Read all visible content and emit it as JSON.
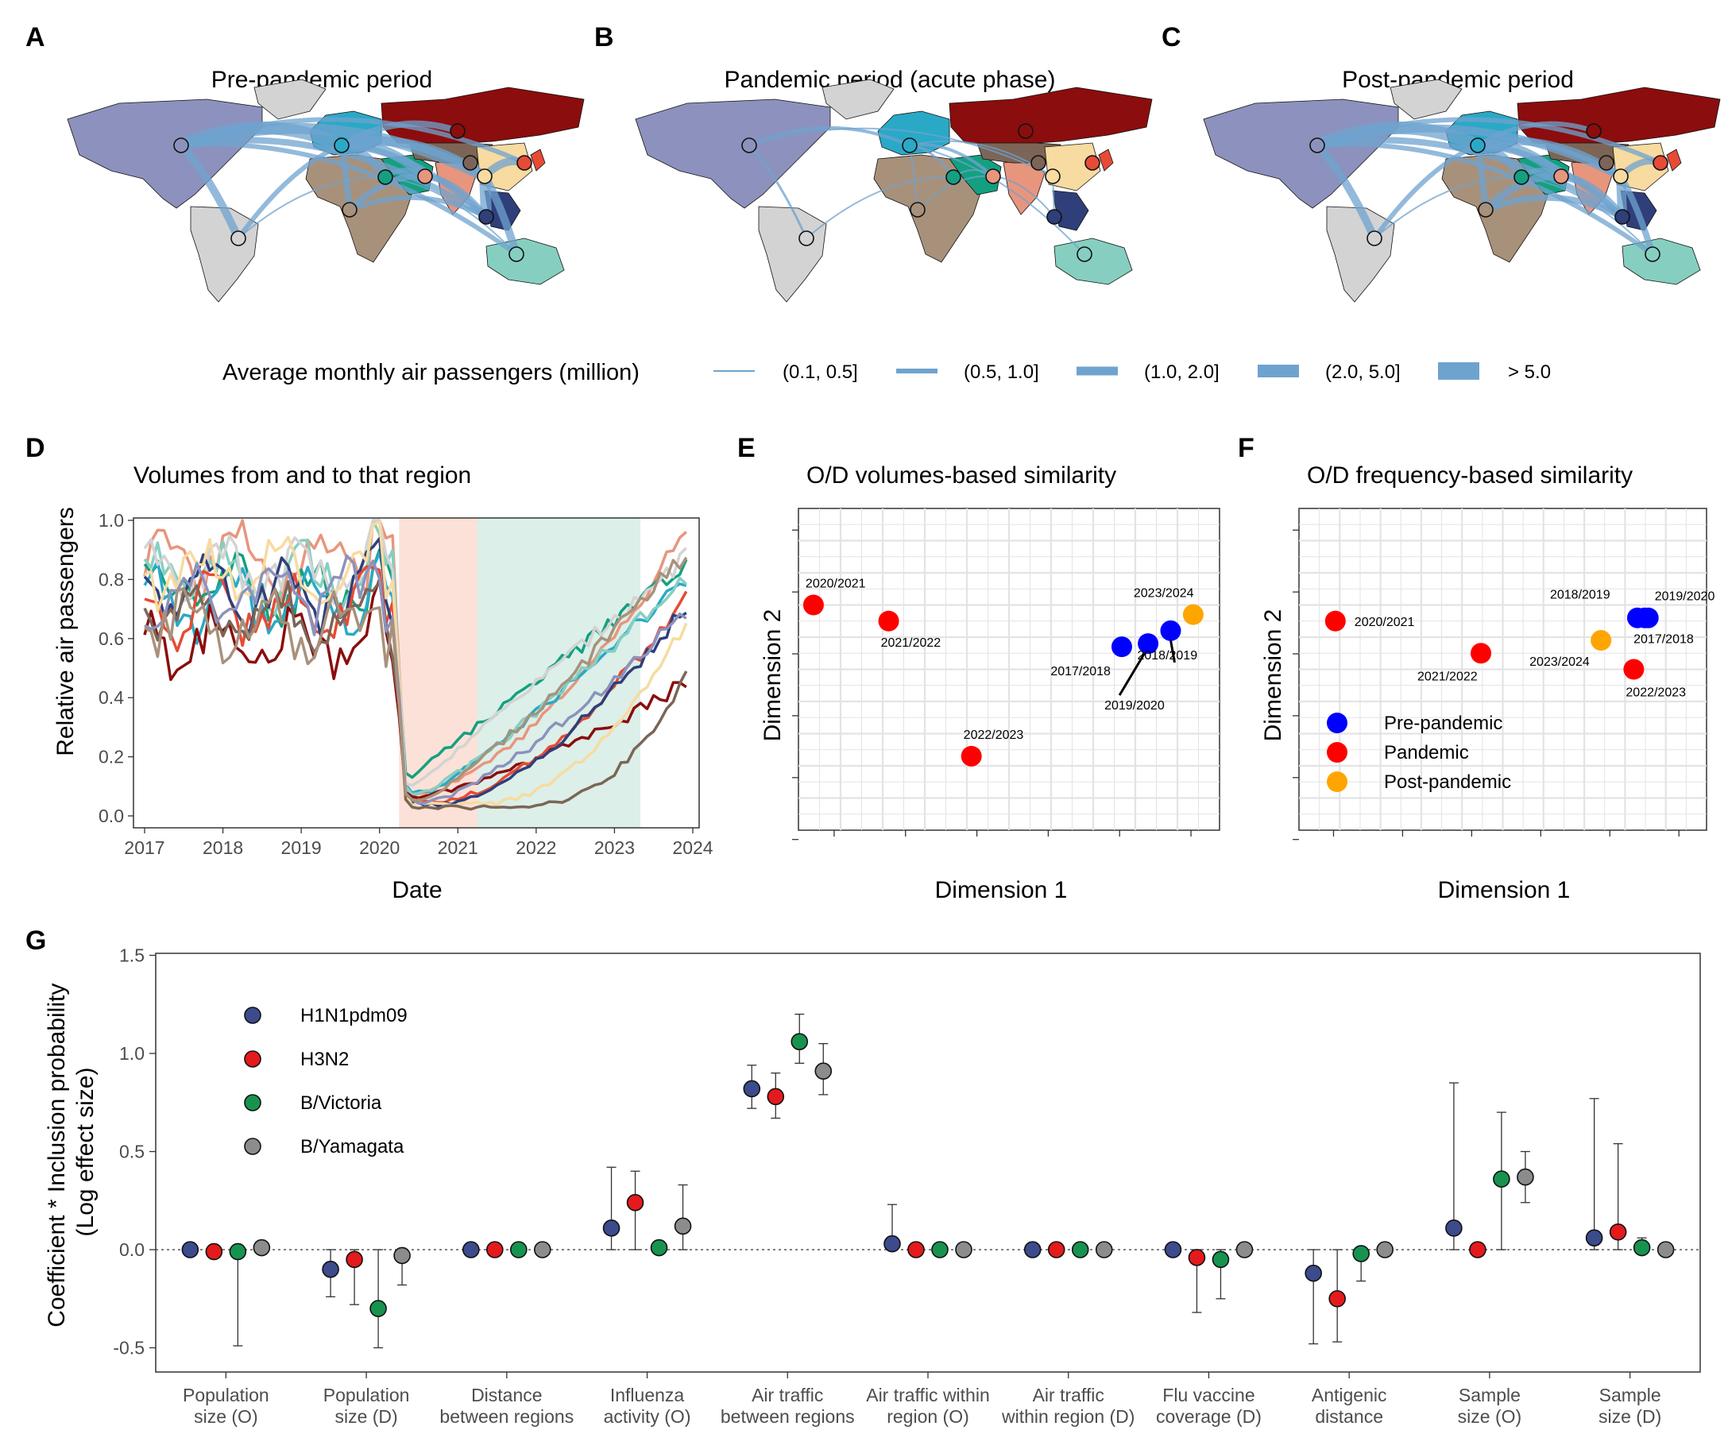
{
  "panel_labels": [
    "A",
    "B",
    "C",
    "D",
    "E",
    "F",
    "G"
  ],
  "maps": [
    {
      "label": "A",
      "title": "Pre-pandemic period"
    },
    {
      "label": "B",
      "title": "Pandemic period (acute phase)"
    },
    {
      "label": "C",
      "title": "Post-pandemic period"
    }
  ],
  "map_legend": {
    "title": "Average monthly air passengers (million)",
    "items": [
      "(0.1, 0.5]",
      "(0.5, 1.0]",
      "(1.0, 2.0]",
      "(2.0, 5.0]",
      "> 5.0"
    ],
    "color": "#6fa3cf"
  },
  "region_colors": [
    "#8c92bd",
    "#d3d3d3",
    "#2aa9c7",
    "#a8917b",
    "#14a080",
    "#e8957d",
    "#8b0d0d",
    "#7c6556",
    "#f7dba0",
    "#e64b35",
    "#2f3f7a",
    "#86cfc0"
  ],
  "chart_data": [
    {
      "panel": "D",
      "type": "line",
      "title": "Volumes from and to that region",
      "xlabel": "Date",
      "ylabel": "Relative air passengers",
      "xlim": [
        2017,
        2024
      ],
      "ylim": [
        0,
        1
      ],
      "xticks": [
        "2017",
        "2018",
        "2019",
        "2020",
        "2021",
        "2022",
        "2023",
        "2024"
      ],
      "yticks": [
        "0.0",
        "0.2",
        "0.4",
        "0.6",
        "0.8",
        "1.0"
      ],
      "shaded_periods": [
        {
          "from": 2020.25,
          "to": 2021.25,
          "color": "#fbe1d7"
        },
        {
          "from": 2021.25,
          "to": 2023.33,
          "color": "#dcefe9"
        }
      ],
      "series_curves": [
        {
          "color": "#e8957d",
          "pre": 0.88,
          "trough": 0.07,
          "end": 0.98,
          "k": 1.7,
          "d": 0.0
        },
        {
          "color": "#14a080",
          "pre": 0.76,
          "trough": 0.12,
          "end": 0.85,
          "k": 1.0,
          "d": 0.0
        },
        {
          "color": "#2aa9c7",
          "pre": 0.72,
          "trough": 0.08,
          "end": 0.8,
          "k": 1.1,
          "d": 0.3
        },
        {
          "color": "#86cfc0",
          "pre": 0.8,
          "trough": 0.07,
          "end": 0.82,
          "k": 1.2,
          "d": 0.15
        },
        {
          "color": "#d3d3d3",
          "pre": 0.83,
          "trough": 0.08,
          "end": 0.88,
          "k": 1.0,
          "d": 0.0
        },
        {
          "color": "#8b0d0d",
          "pre": 0.58,
          "trough": 0.06,
          "end": 0.45,
          "k": 1.4,
          "d": 0.05
        },
        {
          "color": "#e64b35",
          "pre": 0.7,
          "trough": 0.05,
          "end": 0.74,
          "k": 1.6,
          "d": 0.45
        },
        {
          "color": "#2f3f7a",
          "pre": 0.75,
          "trough": 0.04,
          "end": 0.72,
          "k": 1.5,
          "d": 0.55
        },
        {
          "color": "#f7dba0",
          "pre": 0.82,
          "trough": 0.04,
          "end": 0.66,
          "k": 2.0,
          "d": 0.95
        },
        {
          "color": "#7c6556",
          "pre": 0.68,
          "trough": 0.03,
          "end": 0.5,
          "k": 2.6,
          "d": 1.3
        },
        {
          "color": "#8c92bd",
          "pre": 0.74,
          "trough": 0.05,
          "end": 0.7,
          "k": 1.3,
          "d": 0.35
        },
        {
          "color": "#a8917b",
          "pre": 0.65,
          "trough": 0.05,
          "end": 0.9,
          "k": 1.2,
          "d": 0.2
        }
      ]
    },
    {
      "panel": "E",
      "type": "scatter",
      "title": "O/D volumes-based similarity",
      "xlabel": "Dimension 1",
      "ylabel": "Dimension 2",
      "points": [
        {
          "label": "2020/2021",
          "x": 0.04,
          "y": 0.7,
          "group": "Pandemic"
        },
        {
          "label": "2021/2022",
          "x": 0.24,
          "y": 0.65,
          "group": "Pandemic"
        },
        {
          "label": "2022/2023",
          "x": 0.46,
          "y": 0.23,
          "group": "Pandemic"
        },
        {
          "label": "2017/2018",
          "x": 0.86,
          "y": 0.57,
          "group": "Pre-pandemic"
        },
        {
          "label": "2019/2020",
          "x": 0.93,
          "y": 0.58,
          "group": "Pre-pandemic"
        },
        {
          "label": "2018/2019",
          "x": 0.99,
          "y": 0.62,
          "group": "Pre-pandemic"
        },
        {
          "label": "2023/2024",
          "x": 1.05,
          "y": 0.67,
          "group": "Post-pandemic"
        }
      ]
    },
    {
      "panel": "F",
      "type": "scatter",
      "title": "O/D frequency-based similarity",
      "xlabel": "Dimension 1",
      "ylabel": "Dimension 2",
      "points": [
        {
          "label": "2020/2021",
          "x": 0.1,
          "y": 0.65,
          "group": "Pandemic"
        },
        {
          "label": "2021/2022",
          "x": 0.5,
          "y": 0.55,
          "group": "Pandemic"
        },
        {
          "label": "2022/2023",
          "x": 0.92,
          "y": 0.5,
          "group": "Pandemic"
        },
        {
          "label": "2018/2019",
          "x": 0.93,
          "y": 0.66,
          "group": "Pre-pandemic"
        },
        {
          "label": "2019/2020",
          "x": 0.96,
          "y": 0.66,
          "group": "Pre-pandemic"
        },
        {
          "label": "2017/2018",
          "x": 0.95,
          "y": 0.66,
          "group": "Pre-pandemic"
        },
        {
          "label": "2023/2024",
          "x": 0.83,
          "y": 0.59,
          "group": "Post-pandemic"
        }
      ],
      "legend": [
        {
          "name": "Pre-pandemic",
          "color": "#0000ff"
        },
        {
          "name": "Pandemic",
          "color": "#ff0000"
        },
        {
          "name": "Post-pandemic",
          "color": "#ffa500"
        }
      ]
    },
    {
      "panel": "G",
      "type": "scatter",
      "ylabel": "Coefficient * Inclusion probability (Log effect size)",
      "ylim": [
        -0.55,
        1.5
      ],
      "yticks": [
        "-0.5",
        "0.0",
        "0.5",
        "1.0",
        "1.5"
      ],
      "categories": [
        "Population size (O)",
        "Population size (D)",
        "Distance between regions",
        "Influenza activity (O)",
        "Air traffic between regions",
        "Air traffic within region (O)",
        "Air traffic within region (D)",
        "Flu vaccine coverage (D)",
        "Antigenic distance",
        "Sample size (O)",
        "Sample size (D)"
      ],
      "series": [
        {
          "name": "H1N1pdm09",
          "color": "#3c4b8c",
          "values": [
            0.0,
            -0.1,
            0.0,
            0.11,
            0.82,
            0.03,
            0.0,
            0.0,
            -0.12,
            0.11,
            0.06
          ],
          "err": [
            [
              0,
              0
            ],
            [
              -0.24,
              0
            ],
            [
              0,
              0
            ],
            [
              0,
              0.42
            ],
            [
              0.72,
              0.94
            ],
            [
              0,
              0.23
            ],
            [
              0,
              0
            ],
            [
              0,
              0
            ],
            [
              -0.48,
              0
            ],
            [
              0,
              0.85
            ],
            [
              0,
              0.77
            ]
          ]
        },
        {
          "name": "H3N2",
          "color": "#e41a1c",
          "values": [
            -0.01,
            -0.05,
            0.0,
            0.24,
            0.78,
            0.0,
            0.0,
            -0.04,
            -0.25,
            0.0,
            0.09
          ],
          "err": [
            [
              -0.01,
              0
            ],
            [
              -0.28,
              0
            ],
            [
              0,
              0
            ],
            [
              0,
              0.4
            ],
            [
              0.67,
              0.9
            ],
            [
              0,
              0
            ],
            [
              0,
              0
            ],
            [
              -0.32,
              0
            ],
            [
              -0.47,
              0
            ],
            [
              0,
              0
            ],
            [
              0,
              0.54
            ]
          ]
        },
        {
          "name": "B/Victoria",
          "color": "#17934f",
          "values": [
            -0.01,
            -0.3,
            0.0,
            0.01,
            1.06,
            0.0,
            0.0,
            -0.05,
            -0.02,
            0.36,
            0.01
          ],
          "err": [
            [
              -0.49,
              0
            ],
            [
              -0.5,
              0
            ],
            [
              0,
              0
            ],
            [
              0,
              0
            ],
            [
              0.95,
              1.2
            ],
            [
              0,
              0
            ],
            [
              0,
              0
            ],
            [
              -0.25,
              0
            ],
            [
              -0.16,
              0
            ],
            [
              0,
              0.7
            ],
            [
              0,
              0.06
            ]
          ]
        },
        {
          "name": "B/Yamagata",
          "color": "#8c8c8c",
          "values": [
            0.01,
            -0.03,
            0.0,
            0.12,
            0.91,
            0.0,
            0.0,
            0.0,
            0.0,
            0.37,
            0.0
          ],
          "err": [
            [
              0,
              0
            ],
            [
              -0.18,
              0
            ],
            [
              0,
              0
            ],
            [
              0,
              0.33
            ],
            [
              0.79,
              1.05
            ],
            [
              0,
              0
            ],
            [
              0,
              0
            ],
            [
              0,
              0
            ],
            [
              0,
              0
            ],
            [
              0.24,
              0.5
            ],
            [
              0,
              0
            ]
          ]
        }
      ]
    }
  ]
}
